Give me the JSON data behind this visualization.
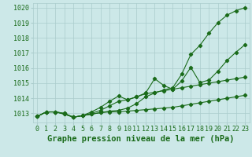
{
  "title": "Graphe pression niveau de la mer (hPa)",
  "x": [
    0,
    1,
    2,
    3,
    4,
    5,
    6,
    7,
    8,
    9,
    10,
    11,
    12,
    13,
    14,
    15,
    16,
    17,
    18,
    19,
    20,
    21,
    22,
    23
  ],
  "series1": [
    1012.8,
    1013.1,
    1013.1,
    1013.0,
    1012.75,
    1012.85,
    1012.95,
    1013.05,
    1013.1,
    1013.1,
    1013.15,
    1013.2,
    1013.25,
    1013.3,
    1013.35,
    1013.4,
    1013.5,
    1013.6,
    1013.7,
    1013.8,
    1013.9,
    1014.0,
    1014.1,
    1014.2
  ],
  "series2": [
    1012.8,
    1013.1,
    1013.1,
    1012.95,
    1012.75,
    1012.85,
    1013.0,
    1013.2,
    1013.5,
    1013.8,
    1013.9,
    1014.1,
    1014.3,
    1014.4,
    1014.5,
    1014.6,
    1014.7,
    1014.8,
    1014.9,
    1015.0,
    1015.1,
    1015.2,
    1015.3,
    1015.4
  ],
  "series3": [
    1012.8,
    1013.1,
    1013.1,
    1012.95,
    1012.75,
    1012.85,
    1013.1,
    1013.4,
    1013.8,
    1014.15,
    1013.9,
    1014.1,
    1014.35,
    1015.3,
    1014.85,
    1014.6,
    1015.15,
    1016.05,
    1015.05,
    1015.2,
    1015.8,
    1016.5,
    1017.05,
    1017.55
  ],
  "series4": [
    1012.8,
    1013.1,
    1013.1,
    1013.0,
    1012.75,
    1012.85,
    1012.95,
    1013.05,
    1013.15,
    1013.2,
    1013.35,
    1013.65,
    1014.1,
    1014.35,
    1014.55,
    1014.7,
    1015.6,
    1016.9,
    1017.5,
    1018.3,
    1019.0,
    1019.5,
    1019.8,
    1020.0
  ],
  "ylim_min": 1012.4,
  "ylim_max": 1020.3,
  "yticks": [
    1013,
    1014,
    1015,
    1016,
    1017,
    1018,
    1019,
    1020
  ],
  "line_color": "#1a6b1a",
  "bg_color": "#cce8e8",
  "grid_color": "#aacccc",
  "label_color": "#1a6b1a",
  "title_fontsize": 7.5,
  "tick_fontsize": 6.0
}
